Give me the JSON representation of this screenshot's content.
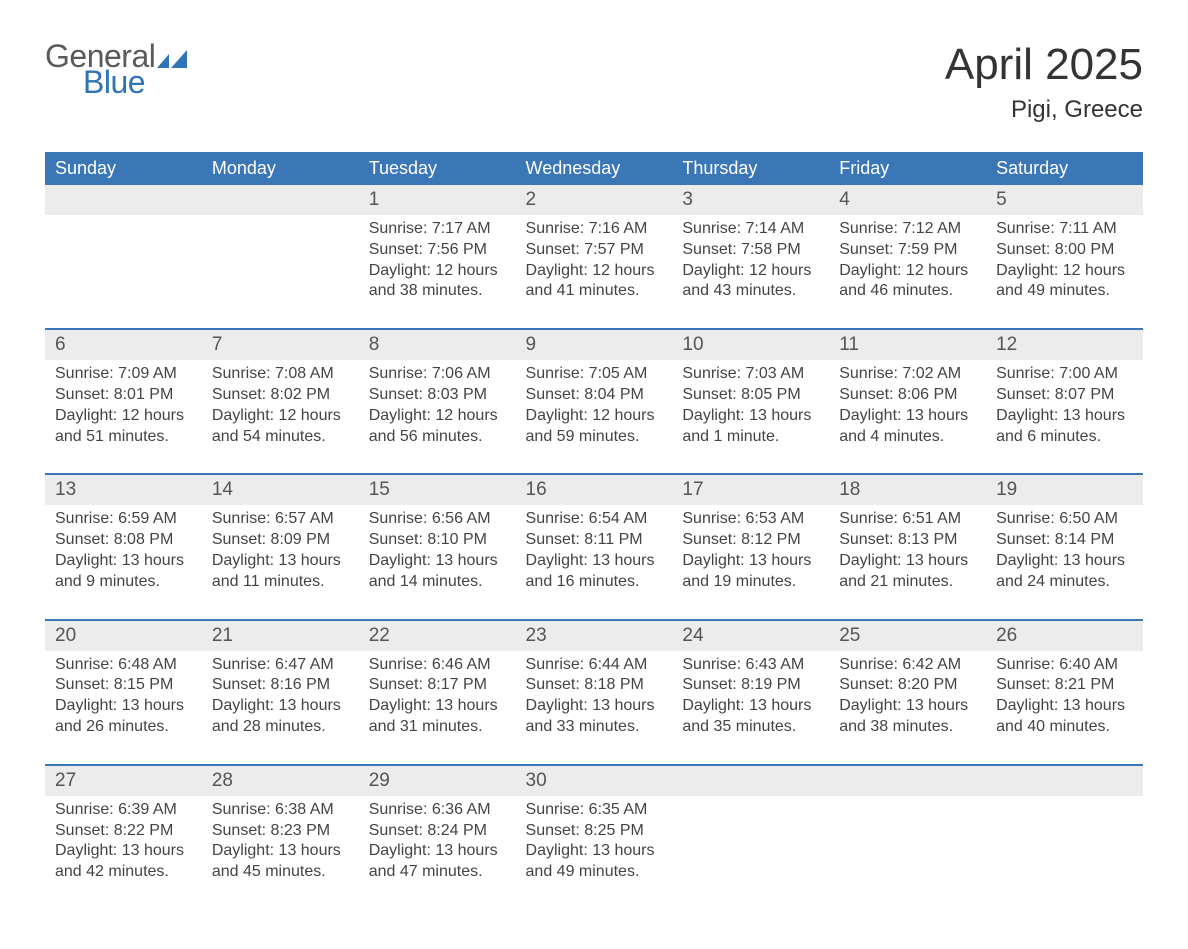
{
  "logo": {
    "word1": "General",
    "word2": "Blue",
    "flag_color": "#2f74b5"
  },
  "title": "April 2025",
  "location": "Pigi, Greece",
  "colors": {
    "header_bg": "#3b77b6",
    "header_text": "#ffffff",
    "daynum_bg": "#ececec",
    "row_border": "#3b77b6",
    "body_text": "#444444"
  },
  "weekdays": [
    "Sunday",
    "Monday",
    "Tuesday",
    "Wednesday",
    "Thursday",
    "Friday",
    "Saturday"
  ],
  "weeks": [
    [
      {
        "n": "",
        "sr": "",
        "ss": "",
        "dl1": "",
        "dl2": ""
      },
      {
        "n": "",
        "sr": "",
        "ss": "",
        "dl1": "",
        "dl2": ""
      },
      {
        "n": "1",
        "sr": "Sunrise: 7:17 AM",
        "ss": "Sunset: 7:56 PM",
        "dl1": "Daylight: 12 hours",
        "dl2": "and 38 minutes."
      },
      {
        "n": "2",
        "sr": "Sunrise: 7:16 AM",
        "ss": "Sunset: 7:57 PM",
        "dl1": "Daylight: 12 hours",
        "dl2": "and 41 minutes."
      },
      {
        "n": "3",
        "sr": "Sunrise: 7:14 AM",
        "ss": "Sunset: 7:58 PM",
        "dl1": "Daylight: 12 hours",
        "dl2": "and 43 minutes."
      },
      {
        "n": "4",
        "sr": "Sunrise: 7:12 AM",
        "ss": "Sunset: 7:59 PM",
        "dl1": "Daylight: 12 hours",
        "dl2": "and 46 minutes."
      },
      {
        "n": "5",
        "sr": "Sunrise: 7:11 AM",
        "ss": "Sunset: 8:00 PM",
        "dl1": "Daylight: 12 hours",
        "dl2": "and 49 minutes."
      }
    ],
    [
      {
        "n": "6",
        "sr": "Sunrise: 7:09 AM",
        "ss": "Sunset: 8:01 PM",
        "dl1": "Daylight: 12 hours",
        "dl2": "and 51 minutes."
      },
      {
        "n": "7",
        "sr": "Sunrise: 7:08 AM",
        "ss": "Sunset: 8:02 PM",
        "dl1": "Daylight: 12 hours",
        "dl2": "and 54 minutes."
      },
      {
        "n": "8",
        "sr": "Sunrise: 7:06 AM",
        "ss": "Sunset: 8:03 PM",
        "dl1": "Daylight: 12 hours",
        "dl2": "and 56 minutes."
      },
      {
        "n": "9",
        "sr": "Sunrise: 7:05 AM",
        "ss": "Sunset: 8:04 PM",
        "dl1": "Daylight: 12 hours",
        "dl2": "and 59 minutes."
      },
      {
        "n": "10",
        "sr": "Sunrise: 7:03 AM",
        "ss": "Sunset: 8:05 PM",
        "dl1": "Daylight: 13 hours",
        "dl2": "and 1 minute."
      },
      {
        "n": "11",
        "sr": "Sunrise: 7:02 AM",
        "ss": "Sunset: 8:06 PM",
        "dl1": "Daylight: 13 hours",
        "dl2": "and 4 minutes."
      },
      {
        "n": "12",
        "sr": "Sunrise: 7:00 AM",
        "ss": "Sunset: 8:07 PM",
        "dl1": "Daylight: 13 hours",
        "dl2": "and 6 minutes."
      }
    ],
    [
      {
        "n": "13",
        "sr": "Sunrise: 6:59 AM",
        "ss": "Sunset: 8:08 PM",
        "dl1": "Daylight: 13 hours",
        "dl2": "and 9 minutes."
      },
      {
        "n": "14",
        "sr": "Sunrise: 6:57 AM",
        "ss": "Sunset: 8:09 PM",
        "dl1": "Daylight: 13 hours",
        "dl2": "and 11 minutes."
      },
      {
        "n": "15",
        "sr": "Sunrise: 6:56 AM",
        "ss": "Sunset: 8:10 PM",
        "dl1": "Daylight: 13 hours",
        "dl2": "and 14 minutes."
      },
      {
        "n": "16",
        "sr": "Sunrise: 6:54 AM",
        "ss": "Sunset: 8:11 PM",
        "dl1": "Daylight: 13 hours",
        "dl2": "and 16 minutes."
      },
      {
        "n": "17",
        "sr": "Sunrise: 6:53 AM",
        "ss": "Sunset: 8:12 PM",
        "dl1": "Daylight: 13 hours",
        "dl2": "and 19 minutes."
      },
      {
        "n": "18",
        "sr": "Sunrise: 6:51 AM",
        "ss": "Sunset: 8:13 PM",
        "dl1": "Daylight: 13 hours",
        "dl2": "and 21 minutes."
      },
      {
        "n": "19",
        "sr": "Sunrise: 6:50 AM",
        "ss": "Sunset: 8:14 PM",
        "dl1": "Daylight: 13 hours",
        "dl2": "and 24 minutes."
      }
    ],
    [
      {
        "n": "20",
        "sr": "Sunrise: 6:48 AM",
        "ss": "Sunset: 8:15 PM",
        "dl1": "Daylight: 13 hours",
        "dl2": "and 26 minutes."
      },
      {
        "n": "21",
        "sr": "Sunrise: 6:47 AM",
        "ss": "Sunset: 8:16 PM",
        "dl1": "Daylight: 13 hours",
        "dl2": "and 28 minutes."
      },
      {
        "n": "22",
        "sr": "Sunrise: 6:46 AM",
        "ss": "Sunset: 8:17 PM",
        "dl1": "Daylight: 13 hours",
        "dl2": "and 31 minutes."
      },
      {
        "n": "23",
        "sr": "Sunrise: 6:44 AM",
        "ss": "Sunset: 8:18 PM",
        "dl1": "Daylight: 13 hours",
        "dl2": "and 33 minutes."
      },
      {
        "n": "24",
        "sr": "Sunrise: 6:43 AM",
        "ss": "Sunset: 8:19 PM",
        "dl1": "Daylight: 13 hours",
        "dl2": "and 35 minutes."
      },
      {
        "n": "25",
        "sr": "Sunrise: 6:42 AM",
        "ss": "Sunset: 8:20 PM",
        "dl1": "Daylight: 13 hours",
        "dl2": "and 38 minutes."
      },
      {
        "n": "26",
        "sr": "Sunrise: 6:40 AM",
        "ss": "Sunset: 8:21 PM",
        "dl1": "Daylight: 13 hours",
        "dl2": "and 40 minutes."
      }
    ],
    [
      {
        "n": "27",
        "sr": "Sunrise: 6:39 AM",
        "ss": "Sunset: 8:22 PM",
        "dl1": "Daylight: 13 hours",
        "dl2": "and 42 minutes."
      },
      {
        "n": "28",
        "sr": "Sunrise: 6:38 AM",
        "ss": "Sunset: 8:23 PM",
        "dl1": "Daylight: 13 hours",
        "dl2": "and 45 minutes."
      },
      {
        "n": "29",
        "sr": "Sunrise: 6:36 AM",
        "ss": "Sunset: 8:24 PM",
        "dl1": "Daylight: 13 hours",
        "dl2": "and 47 minutes."
      },
      {
        "n": "30",
        "sr": "Sunrise: 6:35 AM",
        "ss": "Sunset: 8:25 PM",
        "dl1": "Daylight: 13 hours",
        "dl2": "and 49 minutes."
      },
      {
        "n": "",
        "sr": "",
        "ss": "",
        "dl1": "",
        "dl2": ""
      },
      {
        "n": "",
        "sr": "",
        "ss": "",
        "dl1": "",
        "dl2": ""
      },
      {
        "n": "",
        "sr": "",
        "ss": "",
        "dl1": "",
        "dl2": ""
      }
    ]
  ]
}
